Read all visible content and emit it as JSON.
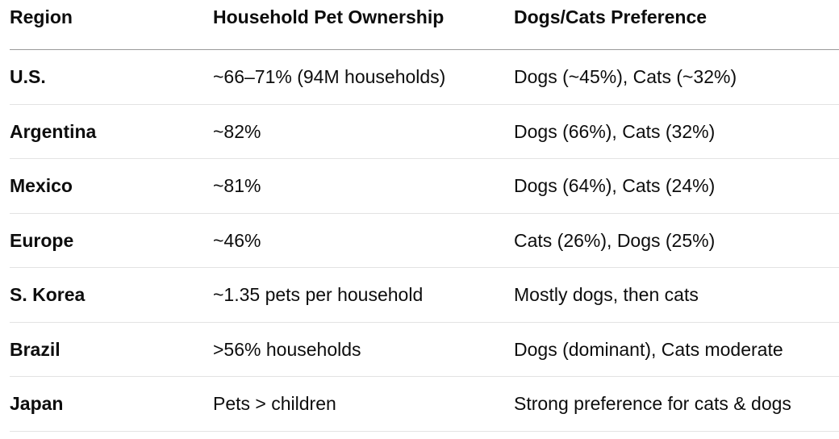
{
  "table": {
    "headers": [
      "Region",
      "Household Pet Ownership",
      "Dogs/Cats Preference"
    ],
    "rows": [
      [
        "U.S.",
        "~66–71% (94M households)",
        "Dogs (~45%), Cats (~32%)"
      ],
      [
        "Argentina",
        "~82%",
        "Dogs (66%), Cats (32%)"
      ],
      [
        "Mexico",
        "~81%",
        "Dogs (64%), Cats (24%)"
      ],
      [
        "Europe",
        "~46%",
        "Cats (26%), Dogs (25%)"
      ],
      [
        "S. Korea",
        "~1.35 pets per household",
        "Mostly dogs, then cats"
      ],
      [
        "Brazil",
        ">56% households",
        "Dogs (dominant), Cats moderate"
      ],
      [
        "Japan",
        "Pets > children",
        "Strong preference for cats & dogs"
      ]
    ]
  }
}
